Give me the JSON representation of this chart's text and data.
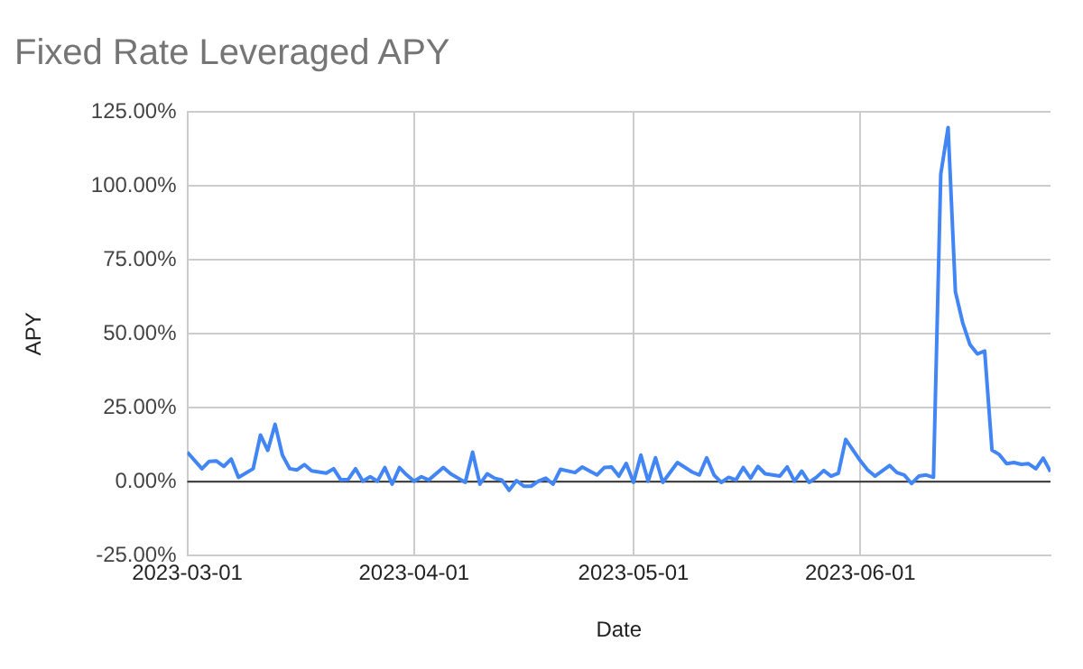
{
  "chart_data": {
    "type": "line",
    "title": "Fixed Rate Leveraged APY",
    "xlabel": "Date",
    "ylabel": "APY",
    "xlim": [
      "2023-03-01",
      "2023-06-27"
    ],
    "xticks": [
      "2023-03-01",
      "2023-04-01",
      "2023-05-01",
      "2023-06-01"
    ],
    "ylim": [
      -25,
      125
    ],
    "yticks": [
      {
        "value": -25,
        "label": "-25.00%"
      },
      {
        "value": 0,
        "label": "0.00%"
      },
      {
        "value": 25,
        "label": "25.00%"
      },
      {
        "value": 50,
        "label": "50.00%"
      },
      {
        "value": 75,
        "label": "75.00%"
      },
      {
        "value": 100,
        "label": "100.00%"
      },
      {
        "value": 125,
        "label": "125.00%"
      }
    ],
    "grid": true,
    "legend": false,
    "ref_lines": [
      {
        "axis": "y",
        "value": 0,
        "label": null,
        "color": "#333333"
      }
    ],
    "series": [
      {
        "color": "#4285f4",
        "x": [
          "2023-03-01",
          "2023-03-03",
          "2023-03-04",
          "2023-03-05",
          "2023-03-06",
          "2023-03-07",
          "2023-03-08",
          "2023-03-10",
          "2023-03-11",
          "2023-03-12",
          "2023-03-13",
          "2023-03-14",
          "2023-03-15",
          "2023-03-16",
          "2023-03-17",
          "2023-03-18",
          "2023-03-20",
          "2023-03-21",
          "2023-03-22",
          "2023-03-23",
          "2023-03-24",
          "2023-03-25",
          "2023-03-26",
          "2023-03-27",
          "2023-03-28",
          "2023-03-29",
          "2023-03-30",
          "2023-03-31",
          "2023-04-01",
          "2023-04-02",
          "2023-04-03",
          "2023-04-05",
          "2023-04-06",
          "2023-04-08",
          "2023-04-09",
          "2023-04-10",
          "2023-04-11",
          "2023-04-12",
          "2023-04-13",
          "2023-04-14",
          "2023-04-15",
          "2023-04-16",
          "2023-04-17",
          "2023-04-18",
          "2023-04-19",
          "2023-04-20",
          "2023-04-21",
          "2023-04-23",
          "2023-04-24",
          "2023-04-26",
          "2023-04-27",
          "2023-04-28",
          "2023-04-29",
          "2023-04-30",
          "2023-05-01",
          "2023-05-02",
          "2023-05-03",
          "2023-05-04",
          "2023-05-05",
          "2023-05-07",
          "2023-05-09",
          "2023-05-10",
          "2023-05-11",
          "2023-05-12",
          "2023-05-13",
          "2023-05-14",
          "2023-05-15",
          "2023-05-16",
          "2023-05-17",
          "2023-05-18",
          "2023-05-19",
          "2023-05-21",
          "2023-05-22",
          "2023-05-23",
          "2023-05-24",
          "2023-05-25",
          "2023-05-26",
          "2023-05-27",
          "2023-05-28",
          "2023-05-29",
          "2023-05-30",
          "2023-06-01",
          "2023-06-02",
          "2023-06-03",
          "2023-06-05",
          "2023-06-06",
          "2023-06-07",
          "2023-06-08",
          "2023-06-09",
          "2023-06-10",
          "2023-06-11",
          "2023-06-12",
          "2023-06-13",
          "2023-06-14",
          "2023-06-15",
          "2023-06-16",
          "2023-06-17",
          "2023-06-18",
          "2023-06-19",
          "2023-06-20",
          "2023-06-21",
          "2023-06-22",
          "2023-06-23",
          "2023-06-24",
          "2023-06-25",
          "2023-06-26",
          "2023-06-27"
        ],
        "values": [
          10,
          4.4,
          6.9,
          7,
          5.2,
          7.7,
          1.5,
          4.4,
          15.8,
          10.6,
          19.4,
          9,
          4.4,
          4,
          5.8,
          3.7,
          2.9,
          4.4,
          0.6,
          0.8,
          4.4,
          0.2,
          1.7,
          0.2,
          4.8,
          -0.8,
          4.8,
          2.3,
          0.2,
          1.7,
          0.6,
          4.8,
          2.7,
          -0.2,
          10,
          -0.8,
          2.7,
          1.2,
          0.6,
          -2.9,
          0.4,
          -1.5,
          -1.5,
          0.2,
          1.2,
          -0.8,
          4.2,
          3.1,
          5,
          2.3,
          4.8,
          5,
          1.9,
          6.2,
          -0.2,
          9,
          0.2,
          8.1,
          -0.2,
          6.5,
          3.3,
          2.3,
          8.1,
          2.3,
          -0.2,
          1.5,
          0.6,
          4.8,
          1.2,
          5.2,
          2.7,
          1.9,
          5,
          0.2,
          3.6,
          -0.2,
          1.5,
          3.8,
          1.9,
          2.9,
          14.3,
          7.1,
          4,
          1.9,
          5.5,
          3.1,
          2.3,
          -0.6,
          1.9,
          2.3,
          1.5,
          104,
          119.7,
          64.2,
          53.7,
          46.3,
          43.2,
          44.2,
          10.7,
          9.2,
          6.1,
          6.5,
          5.9,
          6.1,
          4.4,
          8,
          3.4
        ]
      }
    ]
  }
}
